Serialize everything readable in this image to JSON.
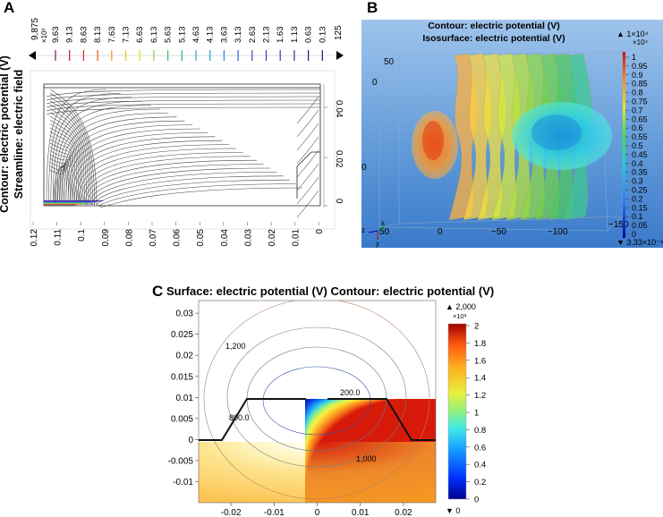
{
  "figure": {
    "panels": [
      {
        "id": "A",
        "label": "A",
        "title_lines": [
          "Contour: electric potential (V)",
          "Streamline: electric field"
        ],
        "legend": {
          "top_label": "9,875",
          "exponent": "×10³",
          "values": [
            "9.63",
            "9.13",
            "8.63",
            "8.13",
            "7.63",
            "7.13",
            "6.63",
            "6.13",
            "5.63",
            "5.13",
            "4.63",
            "4.13",
            "3.63",
            "3.13",
            "2.63",
            "2.13",
            "1.63",
            "1.13",
            "0.63",
            "0.13"
          ],
          "bottom_label": "125"
        },
        "x_ticks": [
          "0.12",
          "0.11",
          "0.1",
          "0.09",
          "0.08",
          "0.07",
          "0.06",
          "0.05",
          "0.04",
          "0.03",
          "0.02",
          "0.01",
          "0"
        ],
        "y_ticks": [
          "0.04",
          "0.02",
          "0"
        ]
      },
      {
        "id": "B",
        "label": "B",
        "title_lines": [
          "Contour: electric potential (V)",
          "Isosurface: electric potential (V)"
        ],
        "colorbar": {
          "top_label": "▲ 1×10⁴",
          "exponent": "×10⁴",
          "values": [
            "1",
            "0.95",
            "0.9",
            "0.85",
            "0.8",
            "0.75",
            "0.7",
            "0.65",
            "0.6",
            "0.55",
            "0.5",
            "0.45",
            "0.4",
            "0.35",
            "0.3",
            "0.25",
            "0.2",
            "0.15",
            "0.1",
            "0.05",
            "0"
          ],
          "bottom_label": "▼ 3.33×10⁻⁸"
        },
        "axis_labels": [
          "50",
          "0",
          "50",
          "0",
          "−50",
          "−100",
          "−150"
        ],
        "axes_glyphs": {
          "x": "x",
          "y": "y",
          "z": "z"
        }
      },
      {
        "id": "C",
        "label": "C",
        "title": "Surface: electric potential (V) Contour: electric potential (V)",
        "contour_labels": [
          "1,200",
          "200.0",
          "800.0",
          "1,000"
        ],
        "colorbar": {
          "top_label": "▲ 2,000",
          "exponent": "×10³",
          "ticks": [
            "2",
            "1.8",
            "1.6",
            "1.4",
            "1.2",
            "1",
            "0.8",
            "0.6",
            "0.4",
            "0.2",
            "0"
          ],
          "bottom_label": "▼ 0"
        }
      }
    ]
  },
  "chart_data": [
    {
      "type": "contour",
      "panel": "A",
      "title": "Contour: electric potential (V) Streamline: electric field",
      "x_ticks": [
        0.12,
        0.11,
        0.1,
        0.09,
        0.08,
        0.07,
        0.06,
        0.05,
        0.04,
        0.03,
        0.02,
        0.01,
        0
      ],
      "y_ticks": [
        0.04,
        0.02,
        0
      ],
      "legend_levels": [
        9.63,
        9.13,
        8.63,
        8.13,
        7.63,
        7.13,
        6.63,
        6.13,
        5.63,
        5.13,
        4.63,
        4.13,
        3.63,
        3.13,
        2.63,
        2.13,
        1.63,
        1.13,
        0.63,
        0.13
      ],
      "legend_range": [
        125,
        9875
      ]
    },
    {
      "type": "isosurface",
      "panel": "B",
      "title": "Contour: electric potential (V) Isosurface: electric potential (V)",
      "colorbar_range": [
        3.33e-08,
        10000
      ],
      "colorbar_ticks": [
        1,
        0.95,
        0.9,
        0.85,
        0.8,
        0.75,
        0.7,
        0.65,
        0.6,
        0.55,
        0.5,
        0.45,
        0.4,
        0.35,
        0.3,
        0.25,
        0.2,
        0.15,
        0.1,
        0.05,
        0
      ]
    },
    {
      "type": "heatmap",
      "panel": "C",
      "title": "Surface: electric potential (V) Contour: electric potential (V)",
      "x_ticks": [
        -0.02,
        -0.01,
        0,
        0.01,
        0.02
      ],
      "y_ticks": [
        0.03,
        0.025,
        0.02,
        0.015,
        0.01,
        0.005,
        0,
        -0.005,
        -0.01
      ],
      "xlim": [
        -0.0275,
        0.0275
      ],
      "ylim": [
        -0.015,
        0.033
      ],
      "colorbar_range": [
        0,
        2000
      ],
      "colorbar_ticks": [
        2,
        1.8,
        1.6,
        1.4,
        1.2,
        1,
        0.8,
        0.6,
        0.4,
        0.2,
        0
      ],
      "contour_labels": [
        1200,
        200,
        800,
        1000
      ]
    }
  ]
}
